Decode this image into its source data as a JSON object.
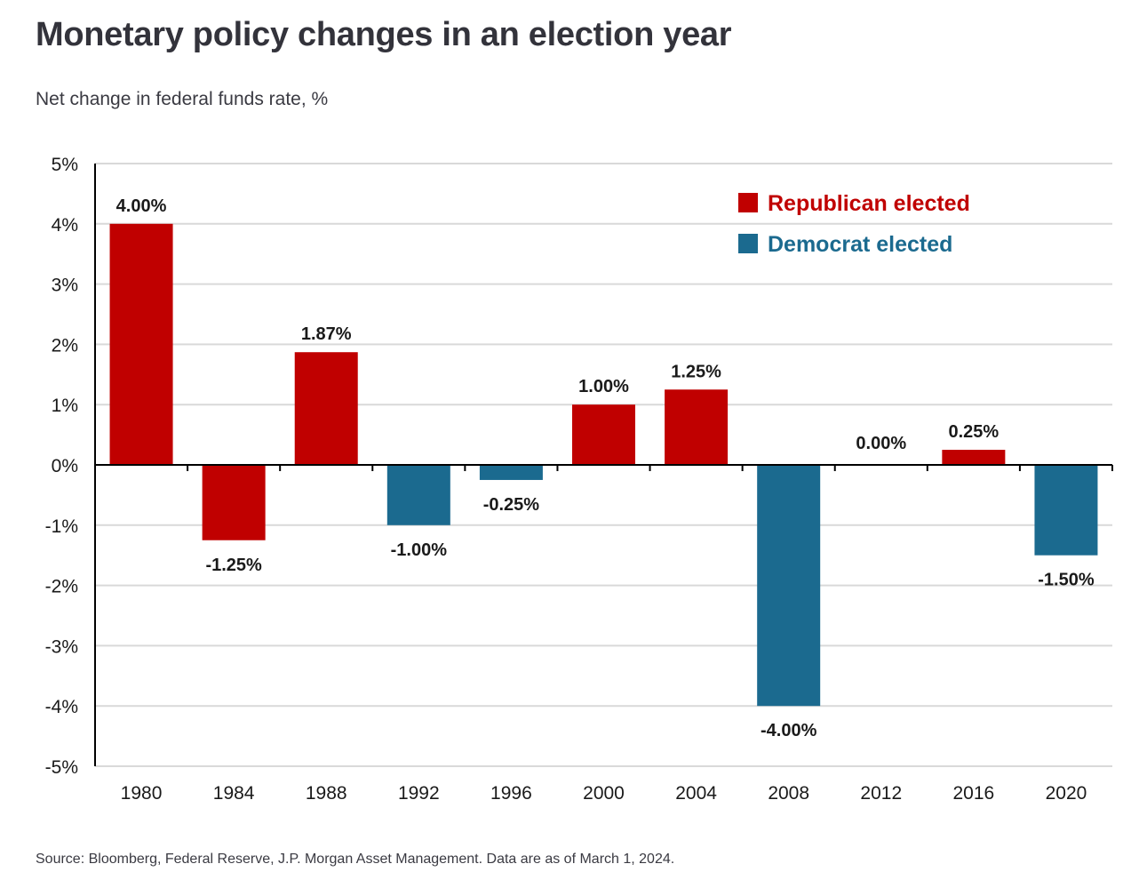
{
  "title": "Monetary policy changes in an election year",
  "subtitle": "Net change in federal funds rate, %",
  "source": "Source: Bloomberg, Federal Reserve, J.P. Morgan Asset Management. Data are as of March 1, 2024.",
  "colors": {
    "republican": "#c00000",
    "democrat": "#1b6a8f",
    "grid": "#d9d9d9",
    "axis": "#000000"
  },
  "chart_data": {
    "type": "bar",
    "title": "Monetary policy changes in an election year",
    "subtitle": "Net change in federal funds rate, %",
    "xlabel": "",
    "ylabel": "",
    "categories": [
      "1980",
      "1984",
      "1988",
      "1992",
      "1996",
      "2000",
      "2004",
      "2008",
      "2012",
      "2016",
      "2020"
    ],
    "values": [
      4.0,
      -1.25,
      1.87,
      -1.0,
      -0.25,
      1.0,
      1.25,
      -4.0,
      0.0,
      0.25,
      -1.5
    ],
    "value_labels": [
      "4.00%",
      "-1.25%",
      "1.87%",
      "-1.00%",
      "-0.25%",
      "1.00%",
      "1.25%",
      "-4.00%",
      "0.00%",
      "0.25%",
      "-1.50%"
    ],
    "party": [
      "republican",
      "republican",
      "republican",
      "democrat",
      "democrat",
      "republican",
      "republican",
      "democrat",
      "democrat",
      "republican",
      "democrat"
    ],
    "ylim": [
      -5,
      5
    ],
    "yticks": [
      5,
      4,
      3,
      2,
      1,
      0,
      -1,
      -2,
      -3,
      -4,
      -5
    ],
    "ytick_labels": [
      "5%",
      "4%",
      "3%",
      "2%",
      "1%",
      "0%",
      "-1%",
      "-2%",
      "-3%",
      "-4%",
      "-5%"
    ],
    "grid": true,
    "legend": {
      "placement": "top-right",
      "entries": [
        {
          "key": "republican",
          "label": "Republican elected"
        },
        {
          "key": "democrat",
          "label": "Democrat elected"
        }
      ]
    }
  }
}
